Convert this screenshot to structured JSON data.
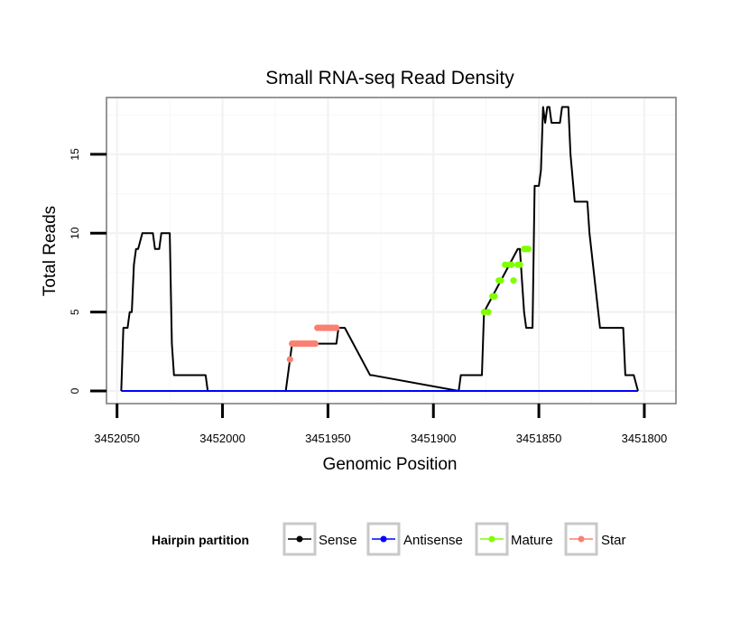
{
  "chart_data": {
    "type": "line",
    "title": "Small RNA-seq Read Density",
    "xlabel": "Genomic Position",
    "ylabel": "Total Reads",
    "x_reversed": true,
    "xlim": [
      3452055,
      3451785
    ],
    "ylim": [
      -0.8,
      18.6
    ],
    "xticks": [
      3452050,
      3452000,
      3451950,
      3451900,
      3451850,
      3451800
    ],
    "yticks": [
      0,
      5,
      10,
      15
    ],
    "grid": true,
    "legend": {
      "title": "Hairpin partition",
      "position": "bottom",
      "entries": [
        {
          "name": "Sense",
          "color": "#000000"
        },
        {
          "name": "Antisense",
          "color": "#0000ff"
        },
        {
          "name": "Mature",
          "color": "#7fff00"
        },
        {
          "name": "Star",
          "color": "#fa8072"
        }
      ]
    },
    "series": [
      {
        "name": "Sense",
        "color": "#000000",
        "kind": "line",
        "x": [
          3452048,
          3452047,
          3452045,
          3452044,
          3452043,
          3452042,
          3452041,
          3452040,
          3452038,
          3452037,
          3452033,
          3452032,
          3452030,
          3452029,
          3452026,
          3452025,
          3452024,
          3452023,
          3452008,
          3452007,
          3451970,
          3451968,
          3451967,
          3451946,
          3451945,
          3451943,
          3451942,
          3451930,
          3451929,
          3451888,
          3451887,
          3451877,
          3451876,
          3451860,
          3451859,
          3451857,
          3451856,
          3451853,
          3451852,
          3451850,
          3451849,
          3451848,
          3451847,
          3451846,
          3451845,
          3451844,
          3451840,
          3451839,
          3451836,
          3451835,
          3451833,
          3451832,
          3451827,
          3451826,
          3451821,
          3451820,
          3451810,
          3451809,
          3451806,
          3451805,
          3451803
        ],
        "y": [
          0,
          4,
          4,
          5,
          5,
          8,
          9,
          9,
          10,
          10,
          10,
          9,
          9,
          10,
          10,
          10,
          3,
          1,
          1,
          0,
          0,
          2,
          3,
          3,
          4,
          4,
          4,
          1,
          1,
          0,
          1,
          1,
          5,
          9,
          9,
          5,
          4,
          4,
          13,
          13,
          14,
          18,
          17,
          18,
          18,
          17,
          17,
          18,
          18,
          15,
          12,
          12,
          12,
          10,
          4,
          4,
          4,
          1,
          1,
          1,
          0
        ]
      },
      {
        "name": "Antisense",
        "color": "#0000ff",
        "kind": "line",
        "x": [
          3452048,
          3451803
        ],
        "y": [
          0,
          0
        ]
      },
      {
        "name": "Mature",
        "color": "#7fff00",
        "kind": "points",
        "x": [
          3451876,
          3451874,
          3451872,
          3451871,
          3451869,
          3451868,
          3451866,
          3451864,
          3451863,
          3451862,
          3451860,
          3451859,
          3451857,
          3451856,
          3451855
        ],
        "y": [
          5,
          5,
          6,
          6,
          7,
          7,
          8,
          8,
          8,
          7,
          8,
          8,
          9,
          9,
          9
        ]
      },
      {
        "name": "Star",
        "color": "#fa8072",
        "kind": "points",
        "x": [
          3451968,
          3451967,
          3451966,
          3451965,
          3451964,
          3451963,
          3451962,
          3451961,
          3451960,
          3451959,
          3451958,
          3451957,
          3451956,
          3451955,
          3451954,
          3451953,
          3451952,
          3451951,
          3451950,
          3451949,
          3451948,
          3451947,
          3451946
        ],
        "y": [
          2,
          3,
          3,
          3,
          3,
          3,
          3,
          3,
          3,
          3,
          3,
          3,
          3,
          4,
          4,
          4,
          4,
          4,
          4,
          4,
          4,
          4,
          4
        ]
      }
    ]
  }
}
